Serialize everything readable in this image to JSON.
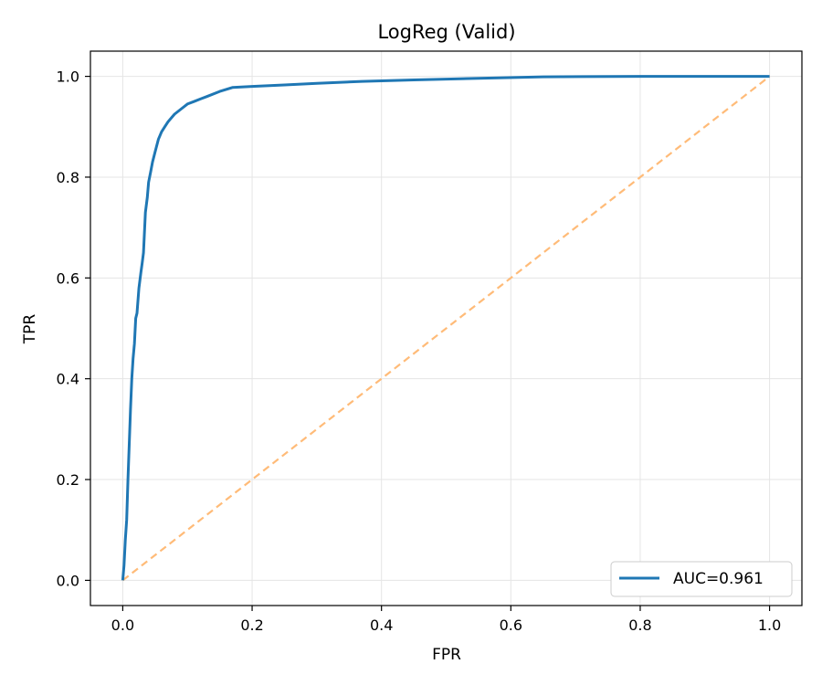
{
  "chart_data": {
    "type": "line",
    "title": "LogReg (Valid)",
    "xlabel": "FPR",
    "ylabel": "TPR",
    "xlim": [
      -0.05,
      1.05
    ],
    "ylim": [
      -0.05,
      1.05
    ],
    "x_ticks": [
      "0.0",
      "0.2",
      "0.4",
      "0.6",
      "0.8",
      "1.0"
    ],
    "y_ticks": [
      "0.0",
      "0.2",
      "0.4",
      "0.6",
      "0.8",
      "1.0"
    ],
    "grid": true,
    "legend_position": "lower-right",
    "series": [
      {
        "name": "AUC=0.961",
        "style": "solid",
        "color": "#1f77b4",
        "x": [
          0.0,
          0.002,
          0.004,
          0.006,
          0.008,
          0.01,
          0.012,
          0.014,
          0.016,
          0.018,
          0.02,
          0.022,
          0.025,
          0.028,
          0.03,
          0.032,
          0.035,
          0.038,
          0.04,
          0.043,
          0.046,
          0.05,
          0.055,
          0.06,
          0.065,
          0.07,
          0.08,
          0.09,
          0.1,
          0.11,
          0.12,
          0.13,
          0.15,
          0.17,
          0.2,
          0.25,
          0.3,
          0.37,
          0.45,
          0.55,
          0.65,
          0.8,
          1.0
        ],
        "y": [
          0.0,
          0.03,
          0.08,
          0.12,
          0.2,
          0.27,
          0.34,
          0.4,
          0.44,
          0.47,
          0.52,
          0.53,
          0.58,
          0.61,
          0.63,
          0.65,
          0.73,
          0.76,
          0.79,
          0.81,
          0.83,
          0.85,
          0.875,
          0.89,
          0.9,
          0.91,
          0.925,
          0.935,
          0.945,
          0.95,
          0.955,
          0.96,
          0.97,
          0.978,
          0.98,
          0.983,
          0.986,
          0.99,
          0.993,
          0.996,
          0.999,
          1.0,
          1.0
        ]
      },
      {
        "name": "",
        "style": "dashed",
        "color": "#ffbb78",
        "x": [
          0.0,
          1.0
        ],
        "y": [
          0.0,
          1.0
        ]
      }
    ]
  }
}
